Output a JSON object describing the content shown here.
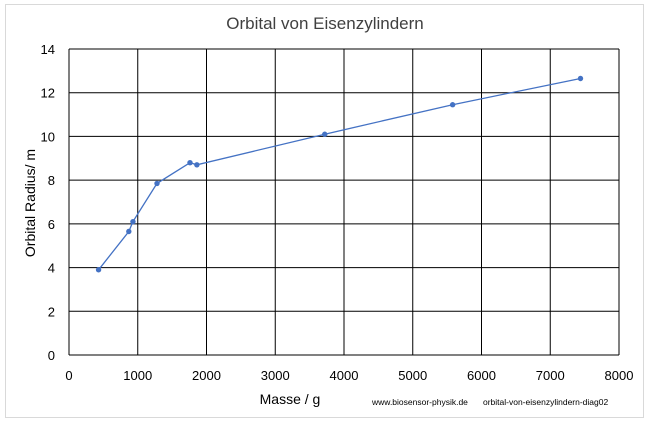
{
  "chart_data": {
    "type": "line",
    "title": "Orbital von Eisenzylindern",
    "xlabel": "Masse / g",
    "ylabel": "Orbital  Radius/ m",
    "xlim": [
      0,
      8000
    ],
    "ylim": [
      0,
      14
    ],
    "x_ticks": [
      0,
      1000,
      2000,
      3000,
      4000,
      5000,
      6000,
      7000,
      8000
    ],
    "y_ticks": [
      0,
      2,
      4,
      6,
      8,
      10,
      12,
      14
    ],
    "grid": true,
    "series": [
      {
        "color": "#4472C4",
        "points": [
          {
            "x": 430,
            "y": 3.9
          },
          {
            "x": 870,
            "y": 5.65
          },
          {
            "x": 930,
            "y": 6.1
          },
          {
            "x": 1280,
            "y": 7.85
          },
          {
            "x": 1760,
            "y": 8.8
          },
          {
            "x": 1860,
            "y": 8.7
          },
          {
            "x": 3720,
            "y": 10.1
          },
          {
            "x": 5580,
            "y": 11.45
          },
          {
            "x": 7440,
            "y": 12.65
          }
        ]
      }
    ]
  },
  "credits": {
    "site": "www.biosensor-physik.de",
    "diagram_id": "orbital-von-eisenzylindern-diag02"
  }
}
